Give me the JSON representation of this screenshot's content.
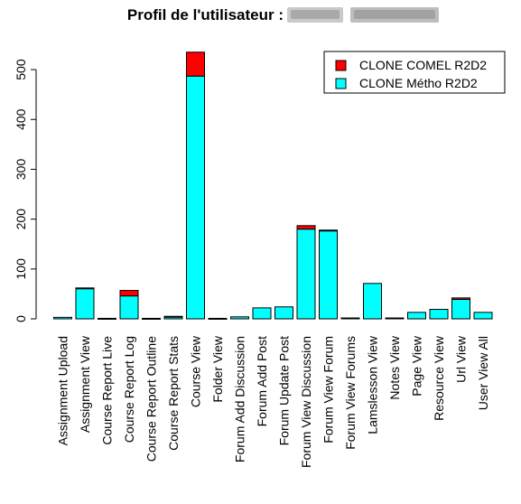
{
  "chart_data": {
    "type": "bar",
    "stacked": true,
    "title": "Profil de l'utilisateur : ",
    "title_redacted": true,
    "xlabel": "",
    "ylabel": "",
    "ylim": [
      0,
      540
    ],
    "yticks": [
      0,
      100,
      200,
      300,
      400,
      500
    ],
    "grid": false,
    "legend_position": "top-right",
    "categories": [
      "Assignment Upload",
      "Assignment View",
      "Course Report Live",
      "Course Report Log",
      "Course Report Outline",
      "Course Report Stats",
      "Course View",
      "Folder View",
      "Forum Add Discussion",
      "Forum Add Post",
      "Forum Update Post",
      "Forum View Discussion",
      "Forum View Forum",
      "Forum View Forums",
      "Lamslesson View",
      "Notes View",
      "Page View",
      "Resource View",
      "Url View",
      "User View All"
    ],
    "series": [
      {
        "name": "CLONE Métho R2D2",
        "color": "#00FFFF",
        "values": [
          3,
          61,
          1,
          46,
          1,
          4,
          487,
          1,
          4,
          22,
          24,
          180,
          177,
          0,
          71,
          0,
          13,
          19,
          39,
          13
        ]
      },
      {
        "name": "CLONE COMEL R2D2",
        "color": "#FF0000",
        "values": [
          0,
          1,
          0,
          11,
          0,
          1,
          48,
          0,
          0,
          0,
          0,
          7,
          1,
          0,
          0,
          0,
          0,
          0,
          3,
          0
        ]
      }
    ],
    "legend_order": [
      1,
      0
    ]
  }
}
